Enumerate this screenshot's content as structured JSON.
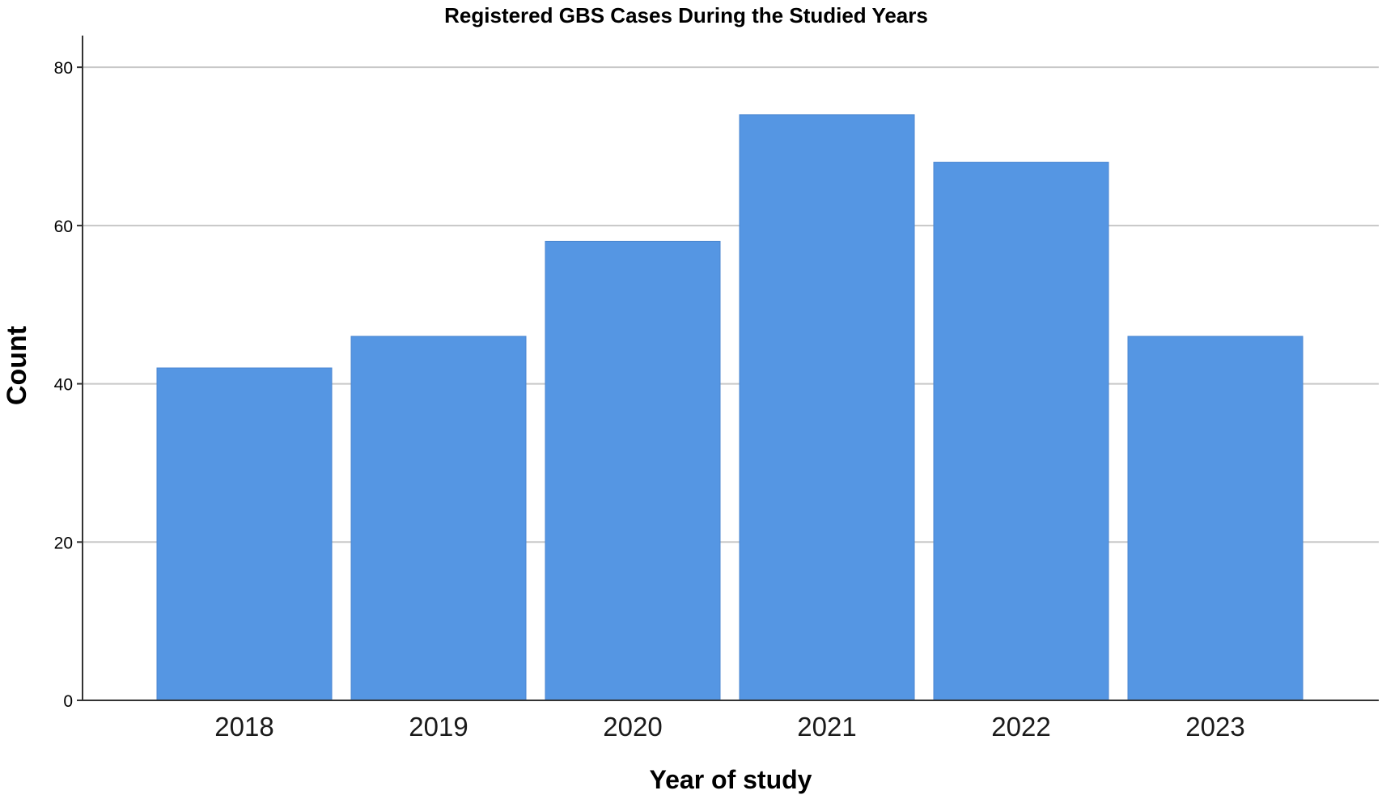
{
  "chart_data": {
    "type": "bar",
    "title": "Registered GBS Cases During the Studied Years",
    "xlabel": "Year of study",
    "ylabel": "Count",
    "categories": [
      "2018",
      "2019",
      "2020",
      "2021",
      "2022",
      "2023"
    ],
    "values": [
      42,
      46,
      58,
      74,
      68,
      46
    ],
    "ylim": [
      0,
      84
    ],
    "yticks": [
      "0",
      "20",
      "40",
      "60",
      "80"
    ],
    "grid": true,
    "legend": "none",
    "colors": {
      "bar": "#5596E3",
      "grid": "#c8c8c8",
      "axis": "#333333",
      "background": "#ffffff"
    }
  }
}
